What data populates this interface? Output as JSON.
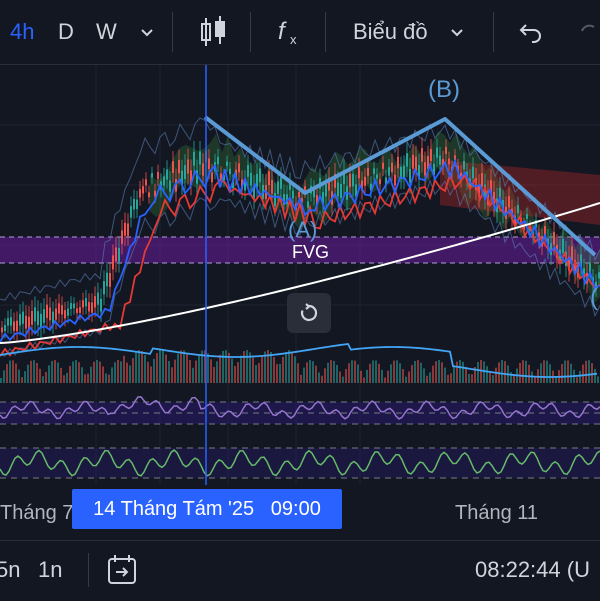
{
  "toolbar": {
    "intervals": [
      "4h",
      "D",
      "W"
    ],
    "active_interval": "4h",
    "chart_type_label": "Biểu đồ"
  },
  "chart": {
    "annotations": {
      "label_a": "(A)",
      "label_b": "(B)",
      "label_c": "(",
      "fvg": "FVG"
    }
  },
  "time_axis": {
    "labels": [
      "Tháng 7",
      "Tháng 11"
    ],
    "crosshair_label": "14 Tháng Tám '25   09:00"
  },
  "bottom_bar": {
    "range_5": "5n",
    "range_1": "1n",
    "clock": "08:22:44 (U"
  },
  "colors": {
    "background": "#131722",
    "accent": "#2962ff",
    "candle_up": "#26a69a",
    "candle_down": "#ef5350",
    "pattern_line": "#5b9bd5",
    "fvg_zone": "#6a1b9a"
  }
}
